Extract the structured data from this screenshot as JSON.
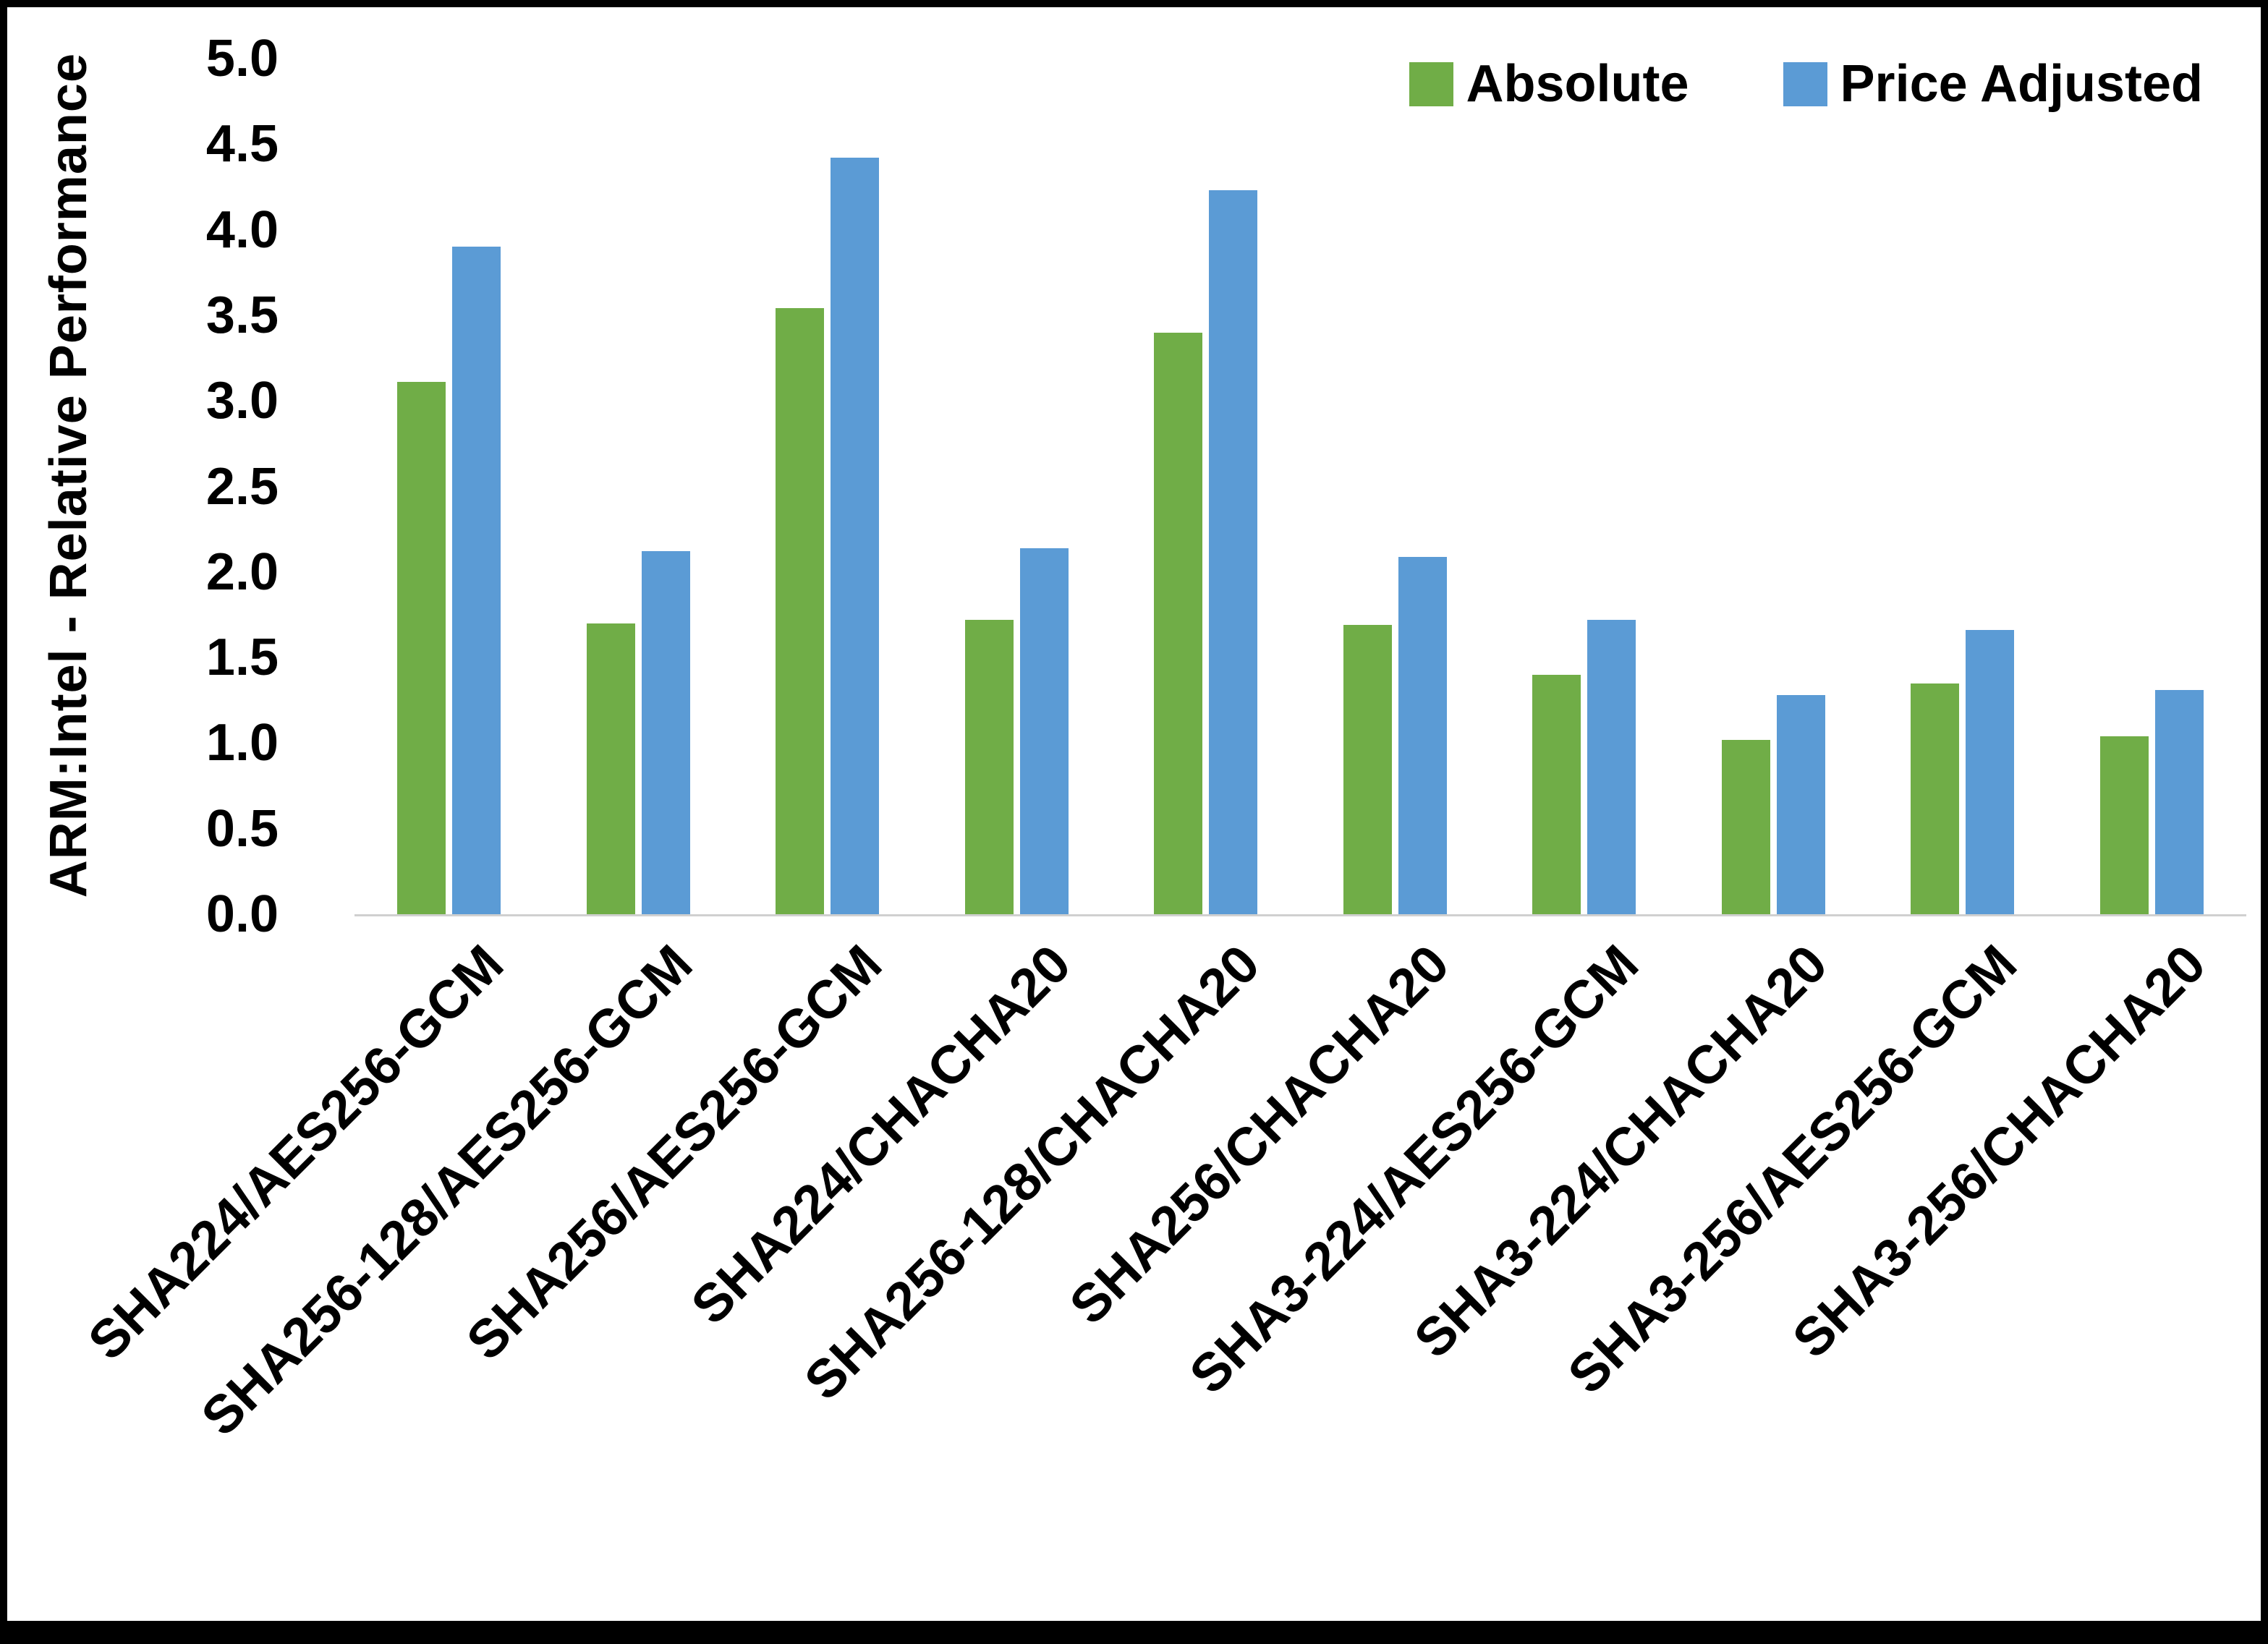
{
  "chart_data": {
    "type": "bar",
    "title": "",
    "xlabel": "",
    "ylabel": "ARM:Intel - Relative Performance",
    "ylim": [
      0,
      5
    ],
    "ytick_step": 0.5,
    "grid": false,
    "legend_position": "top-right",
    "categories": [
      "SHA224/AES256-GCM",
      "SHA256-128/AES256-GCM",
      "SHA256/AES256-GCM",
      "SHA224/CHACHA20",
      "SHA256-128/CHACHA20",
      "SHA256/CHACHA20",
      "SHA3-224/AES256-GCM",
      "SHA3-224/CHACHA20",
      "SHA3-256/AES256-GCM",
      "SHA3-256/CHACHA20"
    ],
    "series": [
      {
        "name": "Absolute",
        "color": "#70AD47",
        "values": [
          3.11,
          1.7,
          3.54,
          1.72,
          3.4,
          1.69,
          1.4,
          1.02,
          1.35,
          1.04
        ]
      },
      {
        "name": "Price Adjusted",
        "color": "#5B9BD5",
        "values": [
          3.9,
          2.12,
          4.42,
          2.14,
          4.23,
          2.09,
          1.72,
          1.28,
          1.66,
          1.31
        ]
      }
    ]
  }
}
